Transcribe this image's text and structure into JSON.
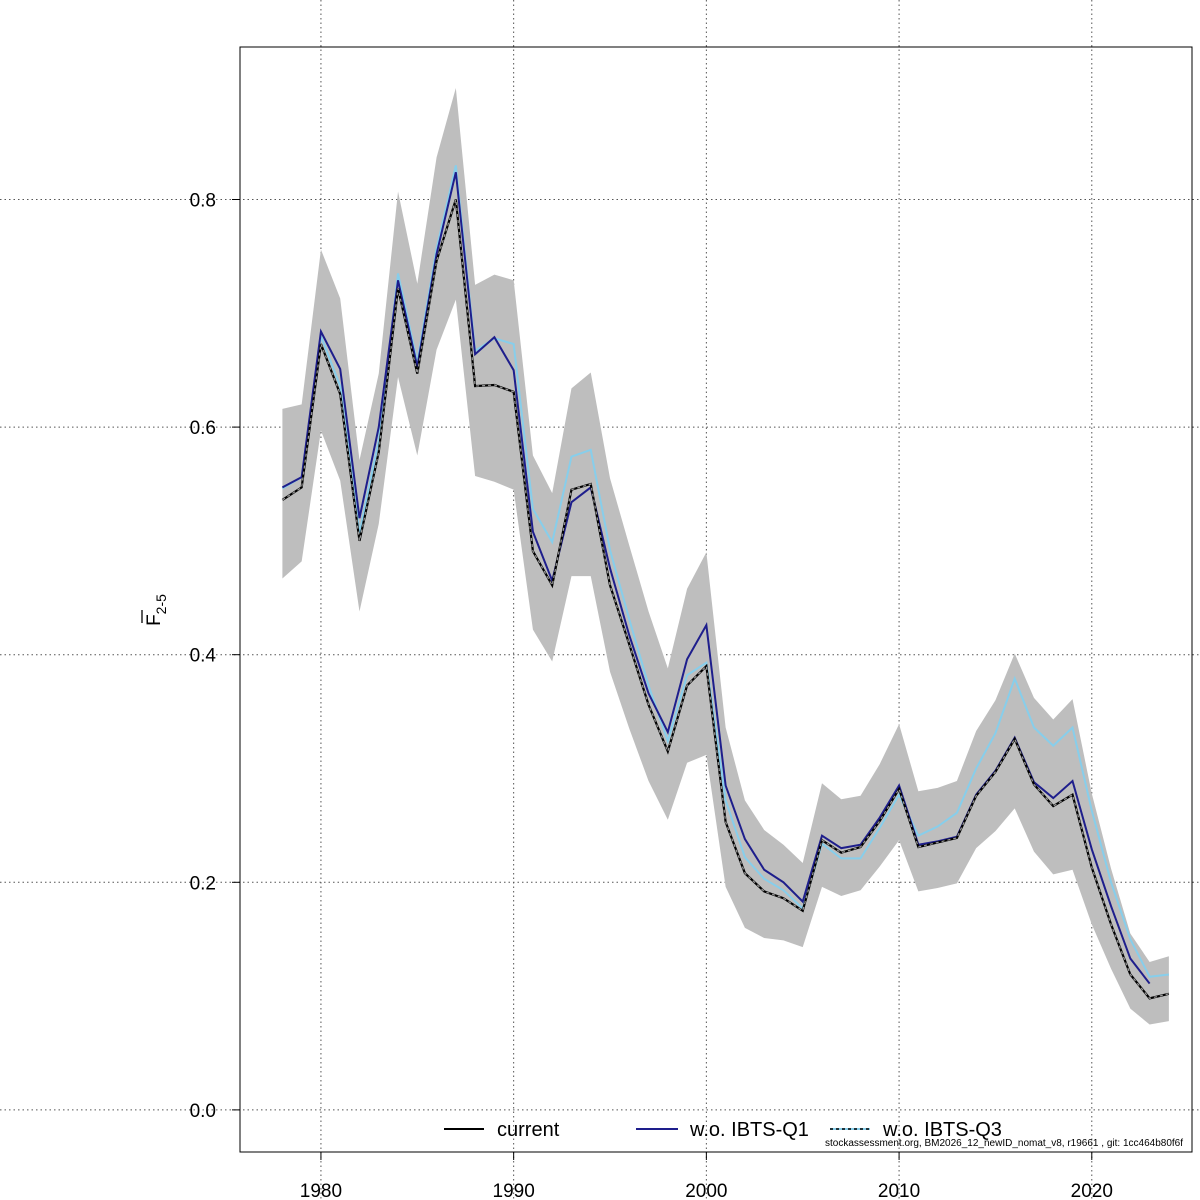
{
  "chart_data": {
    "type": "line",
    "title": "",
    "xlabel": "",
    "ylabel": "F",
    "ylabel_subscript": "2-5",
    "xlim": [
      1975.8,
      2025.2
    ],
    "ylim": [
      -0.037,
      0.934
    ],
    "xticks": [
      1980,
      1990,
      2000,
      2010,
      2020
    ],
    "yticks": [
      0.0,
      0.2,
      0.4,
      0.6,
      0.8
    ],
    "ytick_labels": [
      "0.0",
      "0.2",
      "0.4",
      "0.6",
      "0.8"
    ],
    "grid": true,
    "legend_position": "bottom",
    "footnote": "stockassessment.org, BM2026_12_newID_nomat_v8, r19661 , git: 1cc464b80f6f",
    "band": {
      "x": [
        1978,
        1979,
        1980,
        1981,
        1982,
        1983,
        1984,
        1985,
        1986,
        1987,
        1988,
        1989,
        1990,
        1991,
        1992,
        1993,
        1994,
        1995,
        1996,
        1997,
        1998,
        1999,
        2000,
        2001,
        2002,
        2003,
        2004,
        2005,
        2006,
        2007,
        2008,
        2009,
        2010,
        2011,
        2012,
        2013,
        2014,
        2015,
        2016,
        2017,
        2018,
        2019,
        2020,
        2021,
        2022,
        2023,
        2024
      ],
      "lower": [
        0.467,
        0.482,
        0.597,
        0.553,
        0.438,
        0.515,
        0.644,
        0.575,
        0.668,
        0.712,
        0.557,
        0.552,
        0.545,
        0.422,
        0.394,
        0.469,
        0.469,
        0.385,
        0.335,
        0.289,
        0.255,
        0.305,
        0.312,
        0.196,
        0.16,
        0.151,
        0.149,
        0.143,
        0.196,
        0.188,
        0.193,
        0.214,
        0.237,
        0.192,
        0.195,
        0.199,
        0.23,
        0.245,
        0.265,
        0.227,
        0.207,
        0.211,
        0.163,
        0.124,
        0.089,
        0.075,
        0.078
      ],
      "upper": [
        0.616,
        0.62,
        0.756,
        0.713,
        0.571,
        0.647,
        0.807,
        0.726,
        0.837,
        0.898,
        0.725,
        0.734,
        0.729,
        0.575,
        0.542,
        0.634,
        0.648,
        0.555,
        0.496,
        0.438,
        0.388,
        0.458,
        0.49,
        0.336,
        0.272,
        0.246,
        0.233,
        0.217,
        0.287,
        0.273,
        0.276,
        0.304,
        0.339,
        0.28,
        0.283,
        0.289,
        0.333,
        0.36,
        0.401,
        0.362,
        0.343,
        0.361,
        0.278,
        0.212,
        0.155,
        0.13,
        0.135
      ]
    },
    "series": [
      {
        "name": "current",
        "color": "#000000",
        "dash": "solid",
        "x": [
          1978,
          1979,
          1980,
          1981,
          1982,
          1983,
          1984,
          1985,
          1986,
          1987,
          1988,
          1989,
          1990,
          1991,
          1992,
          1993,
          1994,
          1995,
          1996,
          1997,
          1998,
          1999,
          2000,
          2001,
          2002,
          2003,
          2004,
          2005,
          2006,
          2007,
          2008,
          2009,
          2010,
          2011,
          2012,
          2013,
          2014,
          2015,
          2016,
          2017,
          2018,
          2019,
          2020,
          2021,
          2022,
          2023,
          2024
        ],
        "values": [
          0.536,
          0.547,
          0.673,
          0.629,
          0.5,
          0.578,
          0.722,
          0.647,
          0.746,
          0.8,
          0.636,
          0.637,
          0.631,
          0.491,
          0.461,
          0.545,
          0.55,
          0.461,
          0.409,
          0.356,
          0.315,
          0.373,
          0.39,
          0.253,
          0.208,
          0.192,
          0.186,
          0.175,
          0.237,
          0.226,
          0.231,
          0.254,
          0.282,
          0.231,
          0.235,
          0.239,
          0.276,
          0.297,
          0.326,
          0.286,
          0.267,
          0.277,
          0.213,
          0.163,
          0.119,
          0.098,
          0.102
        ]
      },
      {
        "name": "w.o. IBTS-Q1",
        "color": "#1e1e8c",
        "dash": "solid",
        "x": [
          1978,
          1979,
          1980,
          1981,
          1982,
          1983,
          1984,
          1985,
          1986,
          1987,
          1988,
          1989,
          1990,
          1991,
          1992,
          1993,
          1994,
          1995,
          1996,
          1997,
          1998,
          1999,
          2000,
          2001,
          2002,
          2003,
          2004,
          2005,
          2006,
          2007,
          2008,
          2009,
          2010,
          2011,
          2012,
          2013,
          2014,
          2015,
          2016,
          2017,
          2018,
          2019,
          2020,
          2021,
          2022,
          2023
        ],
        "values": [
          0.547,
          0.556,
          0.684,
          0.651,
          0.52,
          0.6,
          0.729,
          0.653,
          0.752,
          0.824,
          0.664,
          0.679,
          0.65,
          0.508,
          0.465,
          0.534,
          0.547,
          0.476,
          0.417,
          0.366,
          0.332,
          0.396,
          0.426,
          0.285,
          0.238,
          0.211,
          0.2,
          0.183,
          0.241,
          0.23,
          0.233,
          0.257,
          0.285,
          0.233,
          0.236,
          0.24,
          0.277,
          0.298,
          0.327,
          0.288,
          0.274,
          0.289,
          0.229,
          0.179,
          0.133,
          0.111
        ]
      },
      {
        "name": "w.o. IBTS-Q3",
        "color": "#87ceeb",
        "dash": "solid",
        "x": [
          1978,
          1979,
          1980,
          1981,
          1982,
          1983,
          1984,
          1985,
          1986,
          1987,
          1988,
          1989,
          1990,
          1991,
          1992,
          1993,
          1994,
          1995,
          1996,
          1997,
          1998,
          1999,
          2000,
          2001,
          2002,
          2003,
          2004,
          2005,
          2006,
          2007,
          2008,
          2009,
          2010,
          2011,
          2012,
          2013,
          2014,
          2015,
          2016,
          2017,
          2018,
          2019,
          2020,
          2021,
          2022,
          2023,
          2024
        ],
        "values": [
          0.546,
          0.556,
          0.68,
          0.636,
          0.507,
          0.588,
          0.735,
          0.657,
          0.757,
          0.83,
          0.667,
          0.678,
          0.673,
          0.528,
          0.499,
          0.574,
          0.58,
          0.492,
          0.431,
          0.373,
          0.324,
          0.382,
          0.393,
          0.272,
          0.222,
          0.203,
          0.193,
          0.177,
          0.234,
          0.221,
          0.221,
          0.248,
          0.277,
          0.241,
          0.249,
          0.261,
          0.3,
          0.331,
          0.379,
          0.336,
          0.32,
          0.336,
          0.263,
          0.2,
          0.15,
          0.117,
          0.119
        ]
      }
    ],
    "legend_markers": [
      {
        "color": "#000000",
        "dash": "solid"
      },
      {
        "color": "#1e1e8c",
        "dash": "solid"
      },
      {
        "color": "#000000",
        "dash": "dashed"
      }
    ]
  }
}
